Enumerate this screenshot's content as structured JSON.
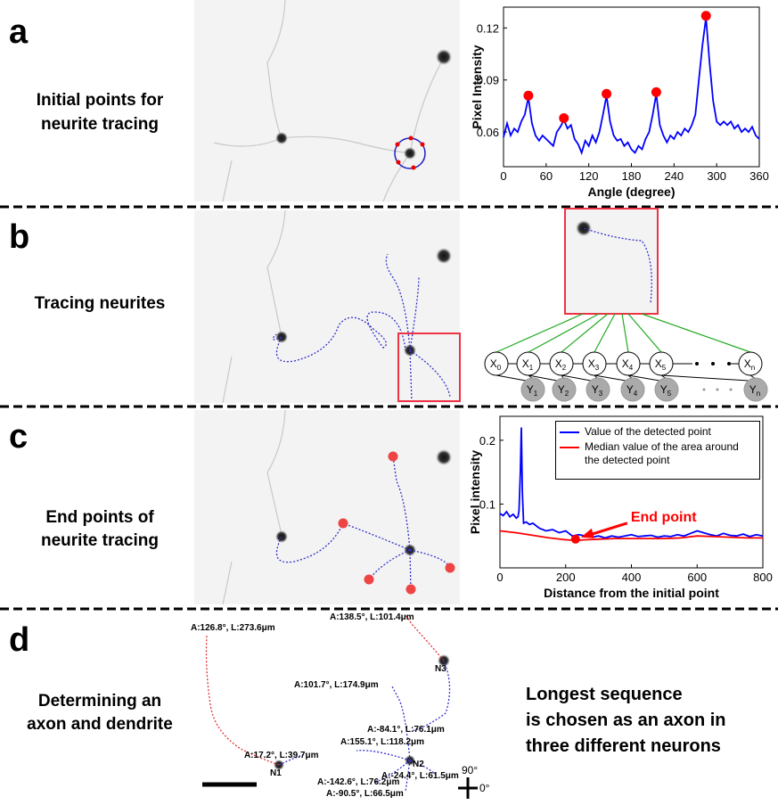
{
  "panels": [
    {
      "label": "a",
      "caption": [
        "Initial points for",
        "neurite tracing"
      ]
    },
    {
      "label": "b",
      "caption": [
        "Tracing neurites"
      ]
    },
    {
      "label": "c",
      "caption": [
        "End points of",
        "neurite tracing"
      ]
    },
    {
      "label": "d",
      "caption": [
        "Determining an",
        "axon and dendrite"
      ]
    }
  ],
  "chart_data": [
    {
      "type": "line",
      "xlabel": "Angle (degree)",
      "ylabel": "Pixel Intensity",
      "xlim": [
        0,
        360
      ],
      "xticks": [
        0,
        60,
        120,
        180,
        240,
        300,
        360
      ],
      "ylim": [
        0.04,
        0.132
      ],
      "yticks": [
        0.06,
        0.09,
        0.12
      ],
      "series": [
        {
          "color": "#0000ff",
          "x": [
            0,
            5,
            10,
            15,
            20,
            25,
            30,
            35,
            40,
            45,
            50,
            55,
            60,
            65,
            70,
            75,
            80,
            85,
            90,
            95,
            100,
            105,
            110,
            115,
            120,
            125,
            130,
            135,
            140,
            145,
            150,
            155,
            160,
            165,
            170,
            175,
            180,
            185,
            190,
            195,
            200,
            205,
            210,
            215,
            220,
            225,
            230,
            235,
            240,
            245,
            250,
            255,
            260,
            265,
            270,
            275,
            280,
            285,
            290,
            295,
            300,
            305,
            310,
            315,
            320,
            325,
            330,
            335,
            340,
            345,
            350,
            355,
            360
          ],
          "values": [
            0.057,
            0.065,
            0.058,
            0.062,
            0.06,
            0.066,
            0.07,
            0.08,
            0.065,
            0.058,
            0.055,
            0.058,
            0.056,
            0.054,
            0.052,
            0.06,
            0.063,
            0.067,
            0.062,
            0.064,
            0.056,
            0.053,
            0.048,
            0.055,
            0.052,
            0.058,
            0.054,
            0.06,
            0.07,
            0.081,
            0.066,
            0.058,
            0.055,
            0.056,
            0.052,
            0.054,
            0.05,
            0.048,
            0.052,
            0.05,
            0.056,
            0.06,
            0.07,
            0.082,
            0.064,
            0.058,
            0.054,
            0.058,
            0.056,
            0.06,
            0.058,
            0.062,
            0.06,
            0.064,
            0.07,
            0.09,
            0.11,
            0.126,
            0.1,
            0.078,
            0.066,
            0.064,
            0.066,
            0.064,
            0.066,
            0.062,
            0.064,
            0.06,
            0.062,
            0.06,
            0.063,
            0.058,
            0.056
          ]
        }
      ],
      "markers": {
        "color": "#ff0000",
        "x": [
          35,
          85,
          145,
          215,
          285
        ],
        "values": [
          0.081,
          0.068,
          0.082,
          0.083,
          0.127
        ]
      }
    },
    {
      "type": "line",
      "xlabel": "Distance from the initial point",
      "ylabel": "Pixel intensity",
      "xlim": [
        0,
        800
      ],
      "xticks": [
        0,
        200,
        400,
        600,
        800
      ],
      "ylim": [
        0,
        0.2375
      ],
      "yticks": [
        0.1,
        0.2
      ],
      "series": [
        {
          "name": "Value of the detected point",
          "color": "#0000ff",
          "x": [
            0,
            10,
            20,
            30,
            40,
            50,
            55,
            58,
            62,
            65,
            68,
            72,
            80,
            90,
            100,
            120,
            140,
            160,
            180,
            200,
            220,
            240,
            260,
            280,
            300,
            320,
            340,
            360,
            380,
            400,
            420,
            440,
            460,
            480,
            500,
            520,
            540,
            560,
            580,
            600,
            620,
            640,
            660,
            680,
            700,
            720,
            740,
            760,
            780,
            800
          ],
          "values": [
            0.085,
            0.082,
            0.088,
            0.08,
            0.084,
            0.078,
            0.08,
            0.09,
            0.15,
            0.22,
            0.12,
            0.07,
            0.072,
            0.068,
            0.07,
            0.062,
            0.058,
            0.06,
            0.055,
            0.058,
            0.05,
            0.052,
            0.05,
            0.048,
            0.05,
            0.047,
            0.05,
            0.048,
            0.05,
            0.052,
            0.049,
            0.05,
            0.051,
            0.048,
            0.05,
            0.049,
            0.052,
            0.05,
            0.054,
            0.058,
            0.055,
            0.052,
            0.05,
            0.054,
            0.051,
            0.05,
            0.053,
            0.049,
            0.052,
            0.05
          ]
        },
        {
          "name": "Median value of the area around the detected point",
          "color": "#ff0000",
          "x": [
            0,
            50,
            100,
            150,
            200,
            230,
            260,
            300,
            350,
            400,
            450,
            500,
            550,
            600,
            650,
            700,
            750,
            800
          ],
          "values": [
            0.058,
            0.055,
            0.051,
            0.047,
            0.044,
            0.043,
            0.044,
            0.045,
            0.046,
            0.046,
            0.046,
            0.046,
            0.047,
            0.05,
            0.049,
            0.048,
            0.047,
            0.047
          ]
        }
      ],
      "annotation": {
        "text": "End point",
        "x": 230,
        "y": 0.045,
        "color": "#ff0000"
      }
    }
  ],
  "diagram_b": {
    "x_nodes": [
      {
        "letter": "X",
        "sub": "0"
      },
      {
        "letter": "X",
        "sub": "1"
      },
      {
        "letter": "X",
        "sub": "2"
      },
      {
        "letter": "X",
        "sub": "3"
      },
      {
        "letter": "X",
        "sub": "4"
      },
      {
        "letter": "X",
        "sub": "5"
      },
      {
        "letter": "X",
        "sub": "n"
      }
    ],
    "y_nodes": [
      {
        "letter": "Y",
        "sub": "1"
      },
      {
        "letter": "Y",
        "sub": "2"
      },
      {
        "letter": "Y",
        "sub": "3"
      },
      {
        "letter": "Y",
        "sub": "4"
      },
      {
        "letter": "Y",
        "sub": "5"
      },
      {
        "letter": "Y",
        "sub": "n"
      }
    ]
  },
  "panel_d": {
    "annotations": [
      "A:126.8°, L:273.6μm",
      "A:138.5°, L:101.4μm",
      "A:101.7°, L:174.9μm",
      "N3",
      "A:-84.1°, L:76.1μm",
      "A:155.1°, L:118.2μm",
      "A:17.2°, L:39.7μm",
      "N1",
      "N2",
      "A:-142.6°, L:76.2μm",
      "A:-24.4°, L:61.5μm",
      "A:-90.5°, L:66.5μm"
    ],
    "axis_labels": [
      "90°",
      "0°"
    ],
    "conclusion": [
      "Longest sequence",
      "is chosen as an axon in",
      "three different neurons"
    ]
  }
}
